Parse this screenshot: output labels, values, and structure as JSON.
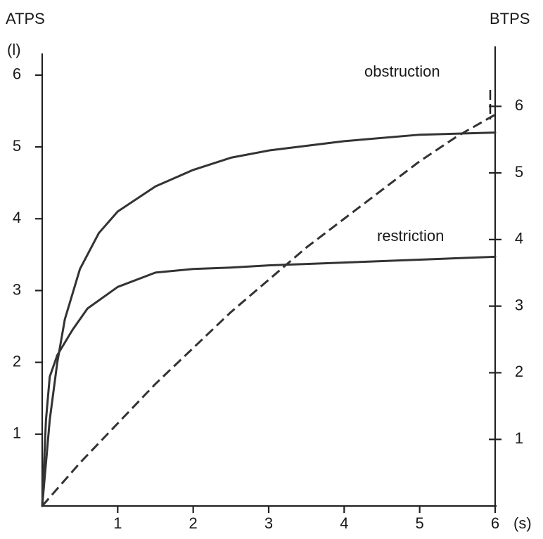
{
  "chart_data": {
    "type": "line",
    "ylabel": "ATPS",
    "yunit": "(l)",
    "y2label": "BTPS",
    "xunit": "(s)",
    "xlim": [
      0,
      6
    ],
    "xticks": [
      1,
      2,
      3,
      4,
      5,
      6
    ],
    "ylim": [
      0,
      6.4
    ],
    "yticks": [
      1,
      2,
      3,
      4,
      5,
      6
    ],
    "y2lim": [
      0,
      6.9
    ],
    "y2ticks": [
      1,
      2,
      3,
      4,
      5,
      6
    ],
    "series": [
      {
        "color": "#333333",
        "dashed": false,
        "x": [
          0,
          0.05,
          0.1,
          0.2,
          0.3,
          0.5,
          0.75,
          1,
          1.5,
          2,
          2.5,
          3,
          4,
          5,
          6
        ],
        "values": [
          0,
          0.6,
          1.2,
          2.0,
          2.6,
          3.3,
          3.8,
          4.1,
          4.45,
          4.68,
          4.85,
          4.95,
          5.08,
          5.17,
          5.2
        ]
      },
      {
        "name": "restriction",
        "color": "#333333",
        "dashed": false,
        "x": [
          0,
          0.05,
          0.1,
          0.2,
          0.4,
          0.6,
          1,
          1.5,
          2,
          2.5,
          3,
          4,
          5,
          6
        ],
        "values": [
          0,
          1.2,
          1.8,
          2.1,
          2.45,
          2.75,
          3.05,
          3.25,
          3.3,
          3.32,
          3.35,
          3.39,
          3.43,
          3.47
        ]
      },
      {
        "name": "obstruction",
        "color": "#333333",
        "dashed": true,
        "x": [
          0,
          0.5,
          1,
          1.5,
          2,
          2.5,
          3,
          3.5,
          4,
          4.5,
          5,
          5.5,
          6
        ],
        "values": [
          0,
          0.6,
          1.15,
          1.7,
          2.2,
          2.7,
          3.15,
          3.6,
          4.0,
          4.4,
          4.8,
          5.15,
          5.45
        ]
      }
    ]
  }
}
